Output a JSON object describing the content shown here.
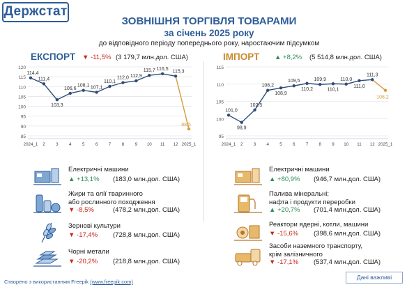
{
  "brand": "Держстат",
  "title": {
    "line1": "ЗОВНІШНЯ ТОРГІВЛЯ ТОВАРАМИ",
    "line2": "за січень 2025 року",
    "line3": "до відповідного періоду попереднього року, наростаючим підсумком"
  },
  "export": {
    "label": "ЕКСПОРТ",
    "delta": "-11,5%",
    "total": "(3 179,7 млн.дол. США)",
    "items": [
      {
        "icon": "electric-machines-icon",
        "name": "Електричні машини",
        "change": "+13,1%",
        "direction": "up",
        "value": "(183,0 млн.дол. США)"
      },
      {
        "icon": "fats-oils-icon",
        "name": "Жири та олії тваринного\nабо рослинного походження",
        "change": "-8,5%",
        "direction": "down",
        "value": "(478,2 млн.дол. США)"
      },
      {
        "icon": "grain-icon",
        "name": "Зернові культури",
        "change": "-17,4%",
        "direction": "down",
        "value": "(728,8 млн.дол. США)"
      },
      {
        "icon": "ferrous-metals-icon",
        "name": "Чорні метали",
        "change": "-20,2%",
        "direction": "down",
        "value": "(218,8 млн.дол. США)"
      }
    ]
  },
  "import": {
    "label": "ІМПОРТ",
    "delta": "+8,2%",
    "total": "(5 514,8 млн.дол. США)",
    "items": [
      {
        "icon": "electric-machines-icon",
        "name": "Електричні машини",
        "change": "+80,9%",
        "direction": "up",
        "value": "(946,7 млн.дол. США)"
      },
      {
        "icon": "fuel-pump-icon",
        "name": "Палива мінеральні;\nнафта і продукти переробки",
        "change": "+20,7%",
        "direction": "up",
        "value": "(701,4 млн.дол. США)"
      },
      {
        "icon": "boiler-machinery-icon",
        "name": "Реактори ядерні, котли, машини",
        "change": "-15,6%",
        "direction": "down",
        "value": "(398,6 млн.дол. США)"
      },
      {
        "icon": "vehicles-icon",
        "name": "Засоби наземного транспорту,\nкрім залізничного",
        "change": "-17,1%",
        "direction": "down",
        "value": "(537,4 млн.дол. США)"
      }
    ]
  },
  "colors": {
    "brand": "#2e5d9a",
    "export": "#2e5d9a",
    "import": "#c98a2e",
    "up": "#2e8b57",
    "down": "#c8281e",
    "line": "#2f4c77",
    "highlight": "#d89a3a"
  },
  "footer": {
    "prefix": "Створено з використанням Freepik ",
    "link": "(www.freepik.com)"
  },
  "note": "Дані важливі",
  "chart_data": [
    {
      "type": "line",
      "title": "ЕКСПОРТ",
      "categories": [
        "2024_1",
        "2",
        "3",
        "4",
        "5",
        "6",
        "7",
        "8",
        "9",
        "10",
        "11",
        "12",
        "2025_1"
      ],
      "values": [
        114.4,
        111.4,
        103.3,
        106.6,
        108.1,
        107.1,
        110.1,
        112.0,
        112.9,
        115.7,
        116.5,
        115.3,
        88.5
      ],
      "labels": [
        "114,4",
        "111,4",
        "103,3",
        "106,6",
        "108,1",
        "107,1",
        "110,1",
        "112,0",
        "112,9",
        "115,7",
        "116,5",
        "115,3",
        "88,5"
      ],
      "yticks": [
        85,
        90,
        95,
        100,
        105,
        110,
        115,
        120
      ],
      "ylim": [
        85,
        120
      ],
      "grid": true
    },
    {
      "type": "line",
      "title": "ІМПОРТ",
      "categories": [
        "2024_1",
        "2",
        "3",
        "4",
        "5",
        "6",
        "7",
        "8",
        "9",
        "10",
        "11",
        "12",
        "2025_1"
      ],
      "values": [
        101.0,
        98.9,
        102.5,
        108.2,
        108.9,
        109.5,
        110.2,
        109.9,
        110.1,
        110.0,
        111.0,
        111.3,
        108.2
      ],
      "labels": [
        "101,0",
        "98,9",
        "102,5",
        "108,2",
        "108,9",
        "109,5",
        "110,2",
        "109,9",
        "110,1",
        "110,0",
        "111,0",
        "111,3",
        "108,2"
      ],
      "yticks": [
        95,
        100,
        105,
        110,
        115
      ],
      "ylim": [
        95,
        115
      ],
      "grid": true
    }
  ]
}
